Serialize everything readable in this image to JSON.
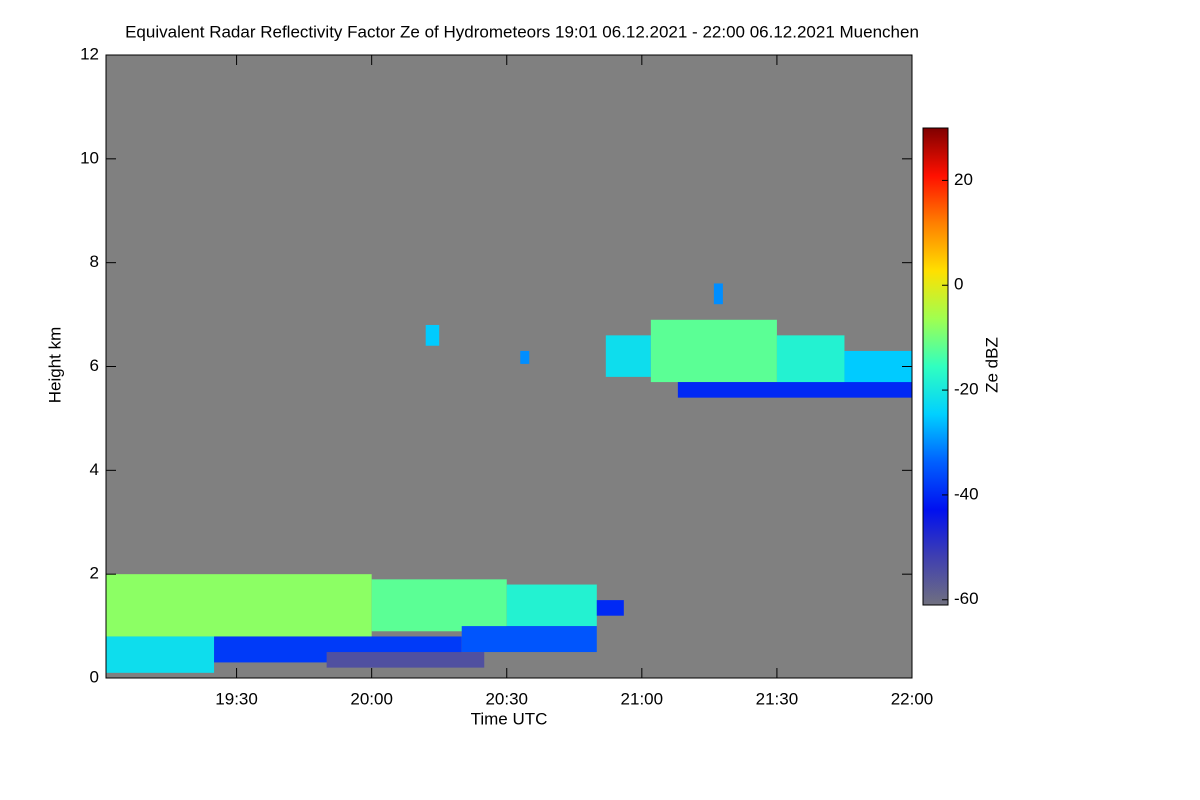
{
  "chart_data": {
    "type": "heatmap",
    "title": "Equivalent Radar Reflectivity Factor Ze of Hydrometeors   19:01 06.12.2021 - 22:00 06.12.2021 Muenchen",
    "x_label": "Time UTC",
    "y_label": "Height km",
    "xlim": [
      1141,
      1320
    ],
    "xticks": [
      {
        "value": 1170,
        "label": "19:30"
      },
      {
        "value": 1200,
        "label": "20:00"
      },
      {
        "value": 1230,
        "label": "20:30"
      },
      {
        "value": 1260,
        "label": "21:00"
      },
      {
        "value": 1290,
        "label": "21:30"
      },
      {
        "value": 1320,
        "label": "22:00"
      }
    ],
    "ylim": [
      0,
      12
    ],
    "yticks": [
      0,
      2,
      4,
      6,
      8,
      10,
      12
    ],
    "background": "#808080",
    "colorbar_label": "Ze dBZ",
    "clim": [
      -61,
      30
    ],
    "cticks": [
      -60,
      -40,
      -20,
      0,
      20
    ],
    "colormap": [
      "#707080",
      "#4040b0",
      "#0010f0",
      "#0060ff",
      "#00d0ff",
      "#30ffc0",
      "#a0ff50",
      "#ffe000",
      "#ff8000",
      "#ff1000",
      "#800000"
    ],
    "cells": [
      {
        "x": [
          1141,
          1200
        ],
        "y": [
          0.8,
          2.0
        ],
        "value": -8
      },
      {
        "x": [
          1200,
          1230
        ],
        "y": [
          0.9,
          1.9
        ],
        "value": -12
      },
      {
        "x": [
          1230,
          1250
        ],
        "y": [
          1.0,
          1.8
        ],
        "value": -18
      },
      {
        "x": [
          1141,
          1165
        ],
        "y": [
          0.1,
          0.8
        ],
        "value": -22
      },
      {
        "x": [
          1165,
          1220
        ],
        "y": [
          0.3,
          0.8
        ],
        "value": -38
      },
      {
        "x": [
          1220,
          1250
        ],
        "y": [
          0.5,
          1.0
        ],
        "value": -35
      },
      {
        "x": [
          1250,
          1256
        ],
        "y": [
          1.2,
          1.5
        ],
        "value": -40
      },
      {
        "x": [
          1190,
          1225
        ],
        "y": [
          0.2,
          0.5
        ],
        "value": -55
      },
      {
        "x": [
          1212,
          1215
        ],
        "y": [
          6.4,
          6.8
        ],
        "value": -25
      },
      {
        "x": [
          1233,
          1235
        ],
        "y": [
          6.05,
          6.3
        ],
        "value": -30
      },
      {
        "x": [
          1276,
          1278
        ],
        "y": [
          7.2,
          7.6
        ],
        "value": -30
      },
      {
        "x": [
          1252,
          1262
        ],
        "y": [
          5.8,
          6.6
        ],
        "value": -22
      },
      {
        "x": [
          1262,
          1290
        ],
        "y": [
          5.7,
          6.9
        ],
        "value": -12
      },
      {
        "x": [
          1290,
          1305
        ],
        "y": [
          5.6,
          6.6
        ],
        "value": -18
      },
      {
        "x": [
          1305,
          1320
        ],
        "y": [
          5.5,
          6.3
        ],
        "value": -25
      },
      {
        "x": [
          1268,
          1320
        ],
        "y": [
          5.4,
          5.7
        ],
        "value": -40
      }
    ]
  }
}
